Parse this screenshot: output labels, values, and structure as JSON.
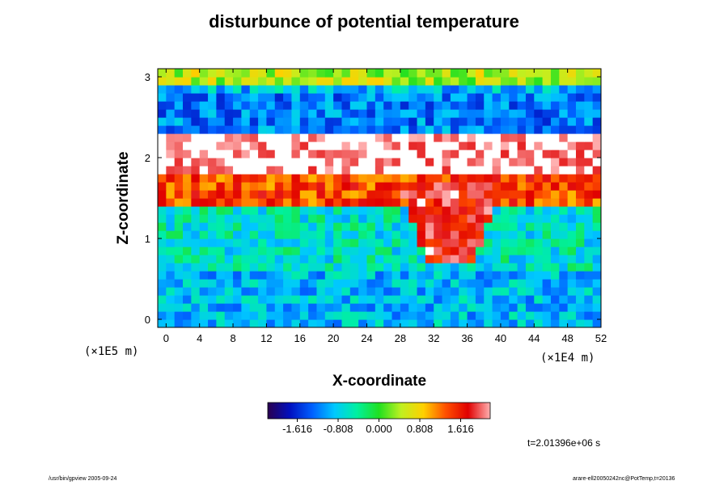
{
  "title": "disturbunce of potential temperature",
  "chart_data": {
    "type": "heatmap",
    "field": "disturbunce of potential temperature",
    "xlabel": "X-coordinate",
    "ylabel": "Z-coordinate",
    "x_unit": "(×1E4 m)",
    "y_unit": "(×1E5 m)",
    "xlim": [
      -1,
      52
    ],
    "ylim": [
      -0.1,
      3.1
    ],
    "x_ticks": [
      "0",
      "4",
      "8",
      "12",
      "16",
      "20",
      "24",
      "28",
      "32",
      "36",
      "40",
      "44",
      "48",
      "52"
    ],
    "y_ticks": [
      "0",
      "1",
      "2",
      "3"
    ],
    "colorbar": {
      "ticks": [
        "-1.616",
        "-0.808",
        "0.000",
        "0.808",
        "1.616"
      ],
      "range": [
        -2.2,
        2.2
      ],
      "colors": [
        "#2a004f",
        "#0010c0",
        "#0060ff",
        "#00c8ff",
        "#00f0a0",
        "#20e020",
        "#c0f020",
        "#ffd000",
        "#ff5000",
        "#e00000",
        "#ffb0b0"
      ]
    },
    "layers": [
      {
        "z_range": [
          2.9,
          3.1
        ],
        "value": 0.45
      },
      {
        "z_range": [
          2.35,
          2.8
        ],
        "value": -1.2
      },
      {
        "z_range": [
          1.8,
          2.35
        ],
        "value": 2.3
      },
      {
        "z_range": [
          1.45,
          1.8
        ],
        "value": 1.4
      },
      {
        "z_range": [
          0.6,
          1.45
        ],
        "value": -0.6
      },
      {
        "z_range": [
          -0.1,
          0.6
        ],
        "value": -0.9
      }
    ],
    "plume": {
      "x_center": 34,
      "z_range": [
        0.7,
        1.7
      ],
      "value": 1.8
    }
  },
  "time_label": "t=2.01396e+06 s",
  "footer_left": "/usr/bin/gpview 2005-09-24",
  "footer_right": "arare-ell20050242nc@PotTemp,t=20136"
}
